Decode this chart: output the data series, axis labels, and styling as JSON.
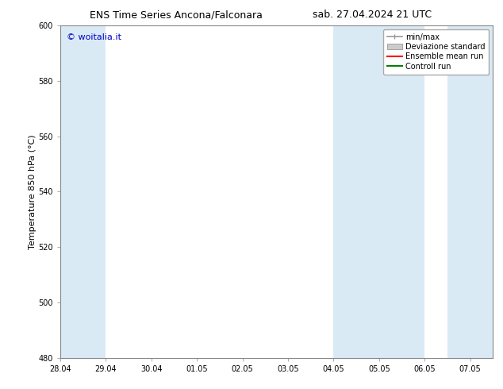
{
  "title_left": "ENS Time Series Ancona/Falconara",
  "title_right": "sab. 27.04.2024 21 UTC",
  "ylabel": "Temperature 850 hPa (°C)",
  "ylim": [
    480,
    600
  ],
  "yticks": [
    480,
    500,
    520,
    540,
    560,
    580,
    600
  ],
  "xlim_start": 0.0,
  "xlim_end": 9.5,
  "xtick_labels": [
    "28.04",
    "29.04",
    "30.04",
    "01.05",
    "02.05",
    "03.05",
    "04.05",
    "05.05",
    "06.05",
    "07.05"
  ],
  "xtick_positions": [
    0,
    1,
    2,
    3,
    4,
    5,
    6,
    7,
    8,
    9
  ],
  "shaded_bands": [
    {
      "x_start": 0.0,
      "x_end": 1.0,
      "color": "#daeaf5"
    },
    {
      "x_start": 6.0,
      "x_end": 8.0,
      "color": "#daeaf5"
    },
    {
      "x_start": 8.5,
      "x_end": 9.5,
      "color": "#daeaf5"
    }
  ],
  "legend_entries": [
    {
      "label": "min/max",
      "color": "#999999",
      "type": "minmax"
    },
    {
      "label": "Deviazione standard",
      "color": "#cccccc",
      "type": "std"
    },
    {
      "label": "Ensemble mean run",
      "color": "#ff0000",
      "type": "line"
    },
    {
      "label": "Controll run",
      "color": "#008000",
      "type": "line"
    }
  ],
  "watermark_text": "© woitalia.it",
  "watermark_color": "#0000cc",
  "background_color": "#ffffff",
  "plot_bg_color": "#ffffff",
  "border_color": "#aaaaaa",
  "title_fontsize": 9,
  "ylabel_fontsize": 8,
  "tick_fontsize": 7,
  "legend_fontsize": 7,
  "watermark_fontsize": 8
}
